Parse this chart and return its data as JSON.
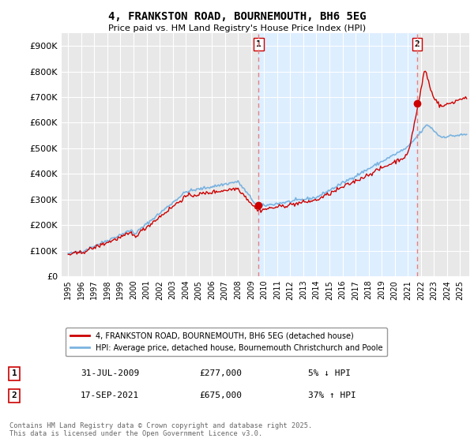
{
  "title": "4, FRANKSTON ROAD, BOURNEMOUTH, BH6 5EG",
  "subtitle": "Price paid vs. HM Land Registry's House Price Index (HPI)",
  "ytick_vals": [
    0,
    100000,
    200000,
    300000,
    400000,
    500000,
    600000,
    700000,
    800000,
    900000
  ],
  "ylim": [
    0,
    950000
  ],
  "xlim_start": 1994.5,
  "xlim_end": 2025.7,
  "sale1_year": 2009.58,
  "sale1_price": 277000,
  "sale1_label": "1",
  "sale1_date": "31-JUL-2009",
  "sale1_pct": "5% ↓ HPI",
  "sale2_year": 2021.72,
  "sale2_price": 675000,
  "sale2_label": "2",
  "sale2_date": "17-SEP-2021",
  "sale2_pct": "37% ↑ HPI",
  "hpi_color": "#7ab3e0",
  "sale_color": "#cc0000",
  "vline_color": "#e88080",
  "shade_color": "#ddeeff",
  "background_color": "#ffffff",
  "plot_bg_color": "#e8e8e8",
  "grid_color": "#ffffff",
  "legend_label_sale": "4, FRANKSTON ROAD, BOURNEMOUTH, BH6 5EG (detached house)",
  "legend_label_hpi": "HPI: Average price, detached house, Bournemouth Christchurch and Poole",
  "footnote": "Contains HM Land Registry data © Crown copyright and database right 2025.\nThis data is licensed under the Open Government Licence v3.0.",
  "xtick_years": [
    1995,
    1996,
    1997,
    1998,
    1999,
    2000,
    2001,
    2002,
    2003,
    2004,
    2005,
    2006,
    2007,
    2008,
    2009,
    2010,
    2011,
    2012,
    2013,
    2014,
    2015,
    2016,
    2017,
    2018,
    2019,
    2020,
    2021,
    2022,
    2023,
    2024,
    2025
  ]
}
